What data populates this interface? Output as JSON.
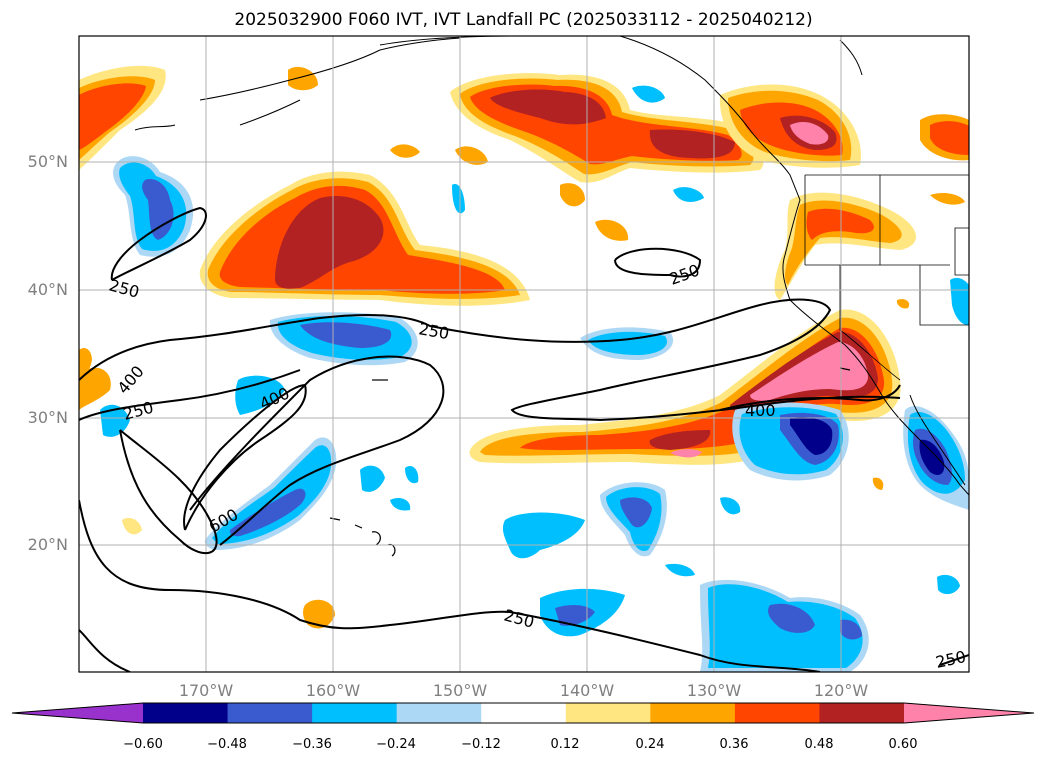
{
  "title": "2025032900 F060 IVT, IVT Landfall PC (2025033112 - 2025040212)",
  "map": {
    "lat_labels": [
      "50°N",
      "40°N",
      "30°N",
      "20°N"
    ],
    "lon_labels": [
      "170°W",
      "160°W",
      "150°W",
      "140°W",
      "130°W",
      "120°W"
    ],
    "contour_labels": [
      "250",
      "250",
      "250",
      "250",
      "250",
      "250",
      "400",
      "400",
      "400",
      "600"
    ],
    "contour_levels": [
      250,
      400,
      600
    ]
  },
  "colorbar": {
    "labels": [
      "−0.60",
      "−0.48",
      "−0.36",
      "−0.24",
      "−0.12",
      "0.12",
      "0.24",
      "0.36",
      "0.48",
      "0.60"
    ],
    "colors": [
      "#9932cc",
      "#00008b",
      "#3a5bcf",
      "#00bfff",
      "#add8f5",
      "#ffffff",
      "#ffe680",
      "#ffa500",
      "#ff4500",
      "#b22222",
      "#ff82ab"
    ]
  }
}
